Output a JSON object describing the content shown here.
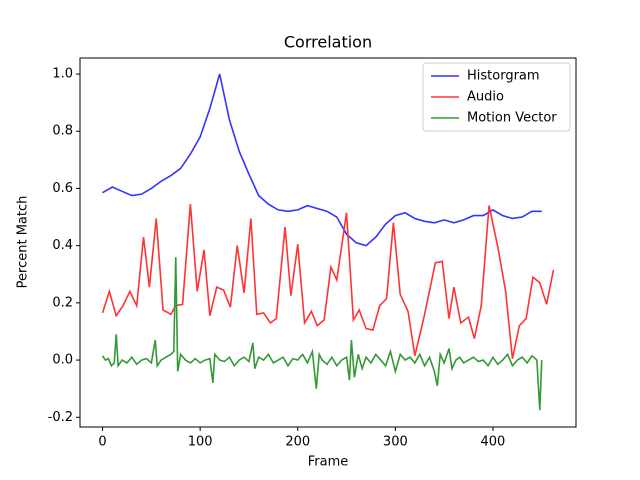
{
  "chart_data": {
    "type": "line",
    "title": "Correlation",
    "xlabel": "Frame",
    "ylabel": "Percent Match",
    "xlim": [
      -23.1,
      485.1
    ],
    "ylim": [
      -0.234,
      1.056
    ],
    "xticks": [
      0,
      100,
      200,
      300,
      400
    ],
    "yticks": [
      -0.2,
      {
        "value": 0,
        "label": "0.0"
      },
      0.2,
      0.4,
      0.6,
      0.8,
      {
        "value": 1,
        "label": "1.0"
      }
    ],
    "grid": false,
    "legend": "upper right",
    "series": [
      {
        "name": "Historgram",
        "color": "#3333ff",
        "x": [
          0,
          10,
          20,
          30,
          40,
          50,
          60,
          70,
          80,
          90,
          100,
          110,
          120,
          130,
          140,
          150,
          160,
          170,
          180,
          190,
          200,
          210,
          220,
          230,
          240,
          250,
          260,
          270,
          280,
          290,
          300,
          310,
          320,
          330,
          340,
          350,
          360,
          370,
          380,
          390,
          400,
          410,
          420,
          430,
          440,
          450
        ],
        "values": [
          0.585,
          0.605,
          0.59,
          0.575,
          0.58,
          0.6,
          0.625,
          0.645,
          0.67,
          0.72,
          0.78,
          0.88,
          1.0,
          0.84,
          0.73,
          0.65,
          0.575,
          0.545,
          0.525,
          0.52,
          0.525,
          0.54,
          0.53,
          0.52,
          0.5,
          0.44,
          0.41,
          0.4,
          0.43,
          0.475,
          0.505,
          0.515,
          0.495,
          0.485,
          0.48,
          0.49,
          0.48,
          0.49,
          0.505,
          0.505,
          0.525,
          0.505,
          0.495,
          0.5,
          0.52,
          0.52
        ]
      },
      {
        "name": "Audio",
        "color": "#ff3333",
        "x": [
          0,
          7,
          14,
          21,
          28,
          35,
          42,
          48,
          55,
          62,
          70,
          75,
          82,
          90,
          97,
          104,
          110,
          117,
          124,
          131,
          138,
          145,
          152,
          158,
          165,
          172,
          178,
          187,
          193,
          200,
          207,
          214,
          220,
          227,
          234,
          240,
          250,
          257,
          263,
          270,
          277,
          284,
          291,
          298,
          305,
          313,
          320,
          330,
          341,
          348,
          355,
          360,
          367,
          375,
          381,
          388,
          396,
          405,
          413,
          420,
          427,
          434,
          441,
          448,
          455,
          462
        ],
        "values": [
          0.165,
          0.24,
          0.155,
          0.19,
          0.24,
          0.19,
          0.43,
          0.255,
          0.495,
          0.175,
          0.16,
          0.19,
          0.195,
          0.545,
          0.24,
          0.385,
          0.155,
          0.255,
          0.245,
          0.185,
          0.4,
          0.235,
          0.495,
          0.16,
          0.165,
          0.13,
          0.145,
          0.465,
          0.225,
          0.405,
          0.13,
          0.17,
          0.12,
          0.14,
          0.325,
          0.28,
          0.515,
          0.14,
          0.175,
          0.11,
          0.105,
          0.19,
          0.215,
          0.48,
          0.23,
          0.17,
          0.015,
          0.16,
          0.34,
          0.345,
          0.145,
          0.255,
          0.13,
          0.15,
          0.075,
          0.19,
          0.54,
          0.395,
          0.24,
          0.005,
          0.12,
          0.145,
          0.29,
          0.27,
          0.195,
          0.315
        ]
      },
      {
        "name": "Motion Vector",
        "color": "#339933",
        "x": [
          0,
          3,
          6,
          9,
          12,
          14,
          16,
          20,
          25,
          30,
          35,
          40,
          45,
          50,
          54,
          56,
          60,
          65,
          70,
          73,
          75,
          77,
          80,
          85,
          90,
          95,
          100,
          105,
          110,
          113,
          115,
          120,
          125,
          130,
          135,
          140,
          145,
          150,
          154,
          156,
          160,
          165,
          170,
          175,
          180,
          185,
          190,
          195,
          200,
          205,
          210,
          215,
          219,
          222,
          225,
          230,
          235,
          240,
          245,
          250,
          253,
          255,
          258,
          262,
          266,
          270,
          275,
          280,
          285,
          290,
          295,
          300,
          305,
          310,
          315,
          320,
          325,
          330,
          335,
          340,
          343,
          346,
          350,
          355,
          358,
          362,
          366,
          370,
          375,
          380,
          385,
          390,
          395,
          400,
          405,
          410,
          415,
          420,
          425,
          430,
          435,
          440,
          445,
          448,
          450
        ],
        "values": [
          0.015,
          0.0,
          0.005,
          -0.02,
          -0.01,
          0.09,
          -0.02,
          0.0,
          -0.01,
          0.01,
          -0.015,
          0.0,
          0.005,
          -0.01,
          0.07,
          -0.02,
          0.0,
          0.01,
          0.02,
          0.03,
          0.36,
          -0.04,
          0.02,
          0.0,
          -0.01,
          0.005,
          -0.01,
          0.0,
          0.005,
          -0.08,
          0.02,
          0.0,
          -0.005,
          0.01,
          -0.02,
          0.0,
          0.01,
          -0.005,
          0.06,
          -0.03,
          0.01,
          0.0,
          0.02,
          -0.01,
          0.0,
          0.01,
          -0.02,
          0.005,
          0.0,
          0.02,
          -0.01,
          0.03,
          -0.1,
          0.02,
          0.0,
          -0.015,
          0.01,
          -0.02,
          0.0,
          0.01,
          -0.07,
          0.07,
          -0.06,
          0.02,
          -0.03,
          0.01,
          -0.01,
          0.02,
          0.0,
          -0.02,
          0.03,
          -0.04,
          0.02,
          0.0,
          0.01,
          -0.01,
          0.02,
          -0.02,
          0.01,
          -0.04,
          -0.09,
          0.02,
          -0.01,
          0.04,
          -0.03,
          0.0,
          0.01,
          -0.01,
          0.0,
          0.01,
          -0.005,
          0.0,
          -0.02,
          0.01,
          -0.015,
          0.0,
          0.02,
          -0.02,
          0.0,
          0.01,
          -0.01,
          0.015,
          0.0,
          -0.175,
          0.0
        ]
      }
    ]
  }
}
